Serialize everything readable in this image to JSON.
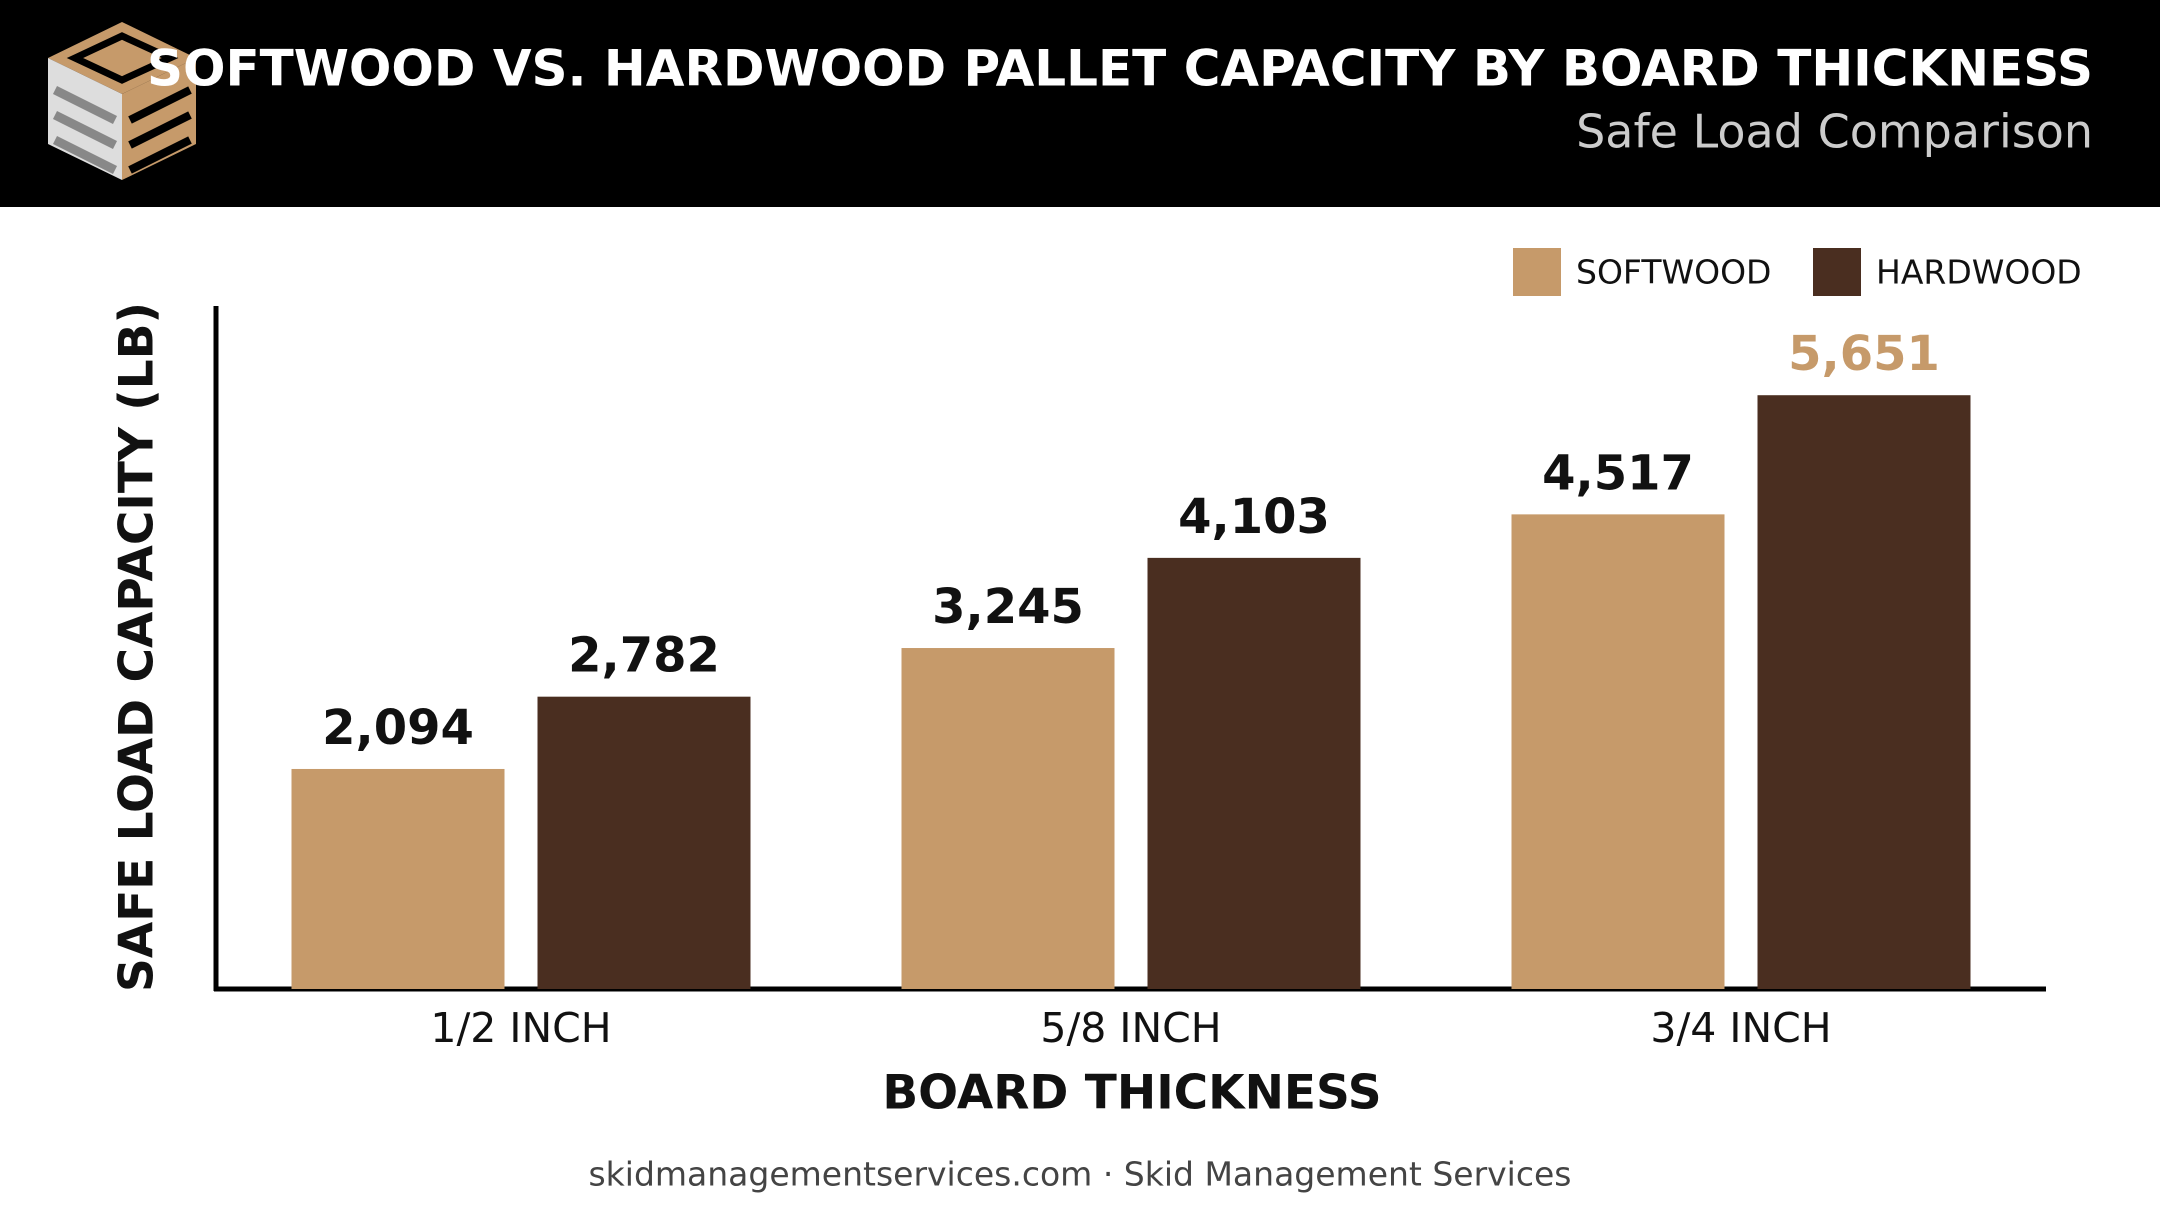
{
  "chart_data": {
    "type": "bar",
    "title": "SOFTWOOD VS. HARDWOOD PALLET CAPACITY BY BOARD THICKNESS",
    "subtitle": "Safe Load Comparison",
    "x_label": "BOARD THICKNESS",
    "y_label": "SAFE LOAD CAPACITY (LB)",
    "footer": "skidmanagementservices.com · Skid Management Services",
    "categories": [
      "1/2 INCH",
      "5/8 INCH",
      "3/4 INCH"
    ],
    "series": [
      {
        "name": "SOFTWOOD",
        "color": "#c69a6a",
        "values": [
          2094,
          3245,
          4517
        ],
        "value_labels": [
          "2,094",
          "3,245",
          "4,517"
        ]
      },
      {
        "name": "HARDWOOD",
        "color": "#4a2e20",
        "values": [
          2782,
          4103,
          5651
        ],
        "value_labels": [
          "2,782",
          "4,103",
          "5,651"
        ]
      }
    ],
    "highlight": {
      "series": 1,
      "index": 2,
      "color": "#c69a6a"
    },
    "ylim": [
      0,
      6500
    ],
    "legend": "top-right"
  }
}
